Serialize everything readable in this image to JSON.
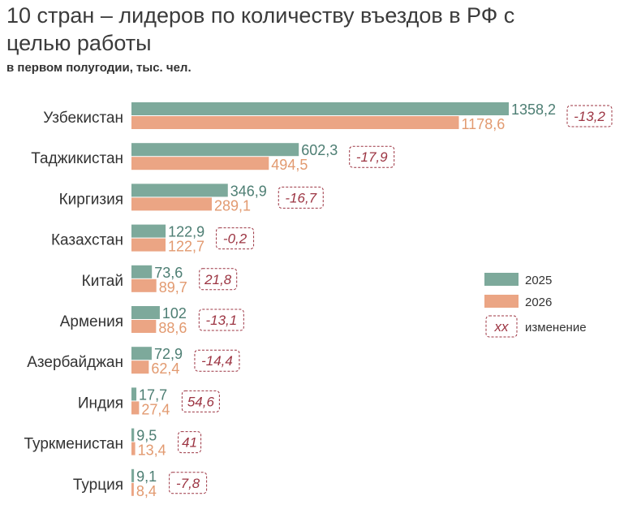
{
  "chart_data": {
    "type": "bar",
    "orientation": "horizontal",
    "title": "10 стран – лидеров по количеству въездов в РФ с целью работы",
    "subtitle": "в первом полугодии, тыс. чел.",
    "categories": [
      "Узбекистан",
      "Таджикистан",
      "Киргизия",
      "Казахстан",
      "Китай",
      "Армения",
      "Азербайджан",
      "Индия",
      "Туркменистан",
      "Турция"
    ],
    "series": [
      {
        "name": "2025",
        "color": "#7da99b",
        "values": [
          1358.2,
          602.3,
          346.9,
          122.9,
          73.6,
          102,
          72.9,
          17.7,
          9.5,
          9.1
        ],
        "labels": [
          "1358,2",
          "602,3",
          "346,9",
          "122,9",
          "73,6",
          "102",
          "72,9",
          "17,7",
          "9,5",
          "9,1"
        ]
      },
      {
        "name": "2026",
        "color": "#eba584",
        "values": [
          1178.6,
          494.5,
          289.1,
          122.7,
          89.7,
          88.6,
          62.4,
          27.4,
          13.4,
          8.4
        ],
        "labels": [
          "1178,6",
          "494,5",
          "289,1",
          "122,7",
          "89,7",
          "88,6",
          "62,4",
          "27,4",
          "13,4",
          "8,4"
        ]
      }
    ],
    "change": {
      "values": [
        -13.2,
        -17.9,
        -16.7,
        -0.2,
        21.8,
        -13.1,
        -14.4,
        54.6,
        41,
        -7.8
      ],
      "labels": [
        "-13,2",
        "-17,9",
        "-16,7",
        "-0,2",
        "21,8",
        "-13,1",
        "-14,4",
        "54,6",
        "41",
        "-7,8"
      ],
      "color": "#9c3442"
    },
    "legend": {
      "position": "right",
      "items": [
        "2025",
        "2026"
      ],
      "change_sample": "xx",
      "change_label": "изменение"
    },
    "xlim": [
      0,
      1358.2
    ],
    "grid": false
  }
}
